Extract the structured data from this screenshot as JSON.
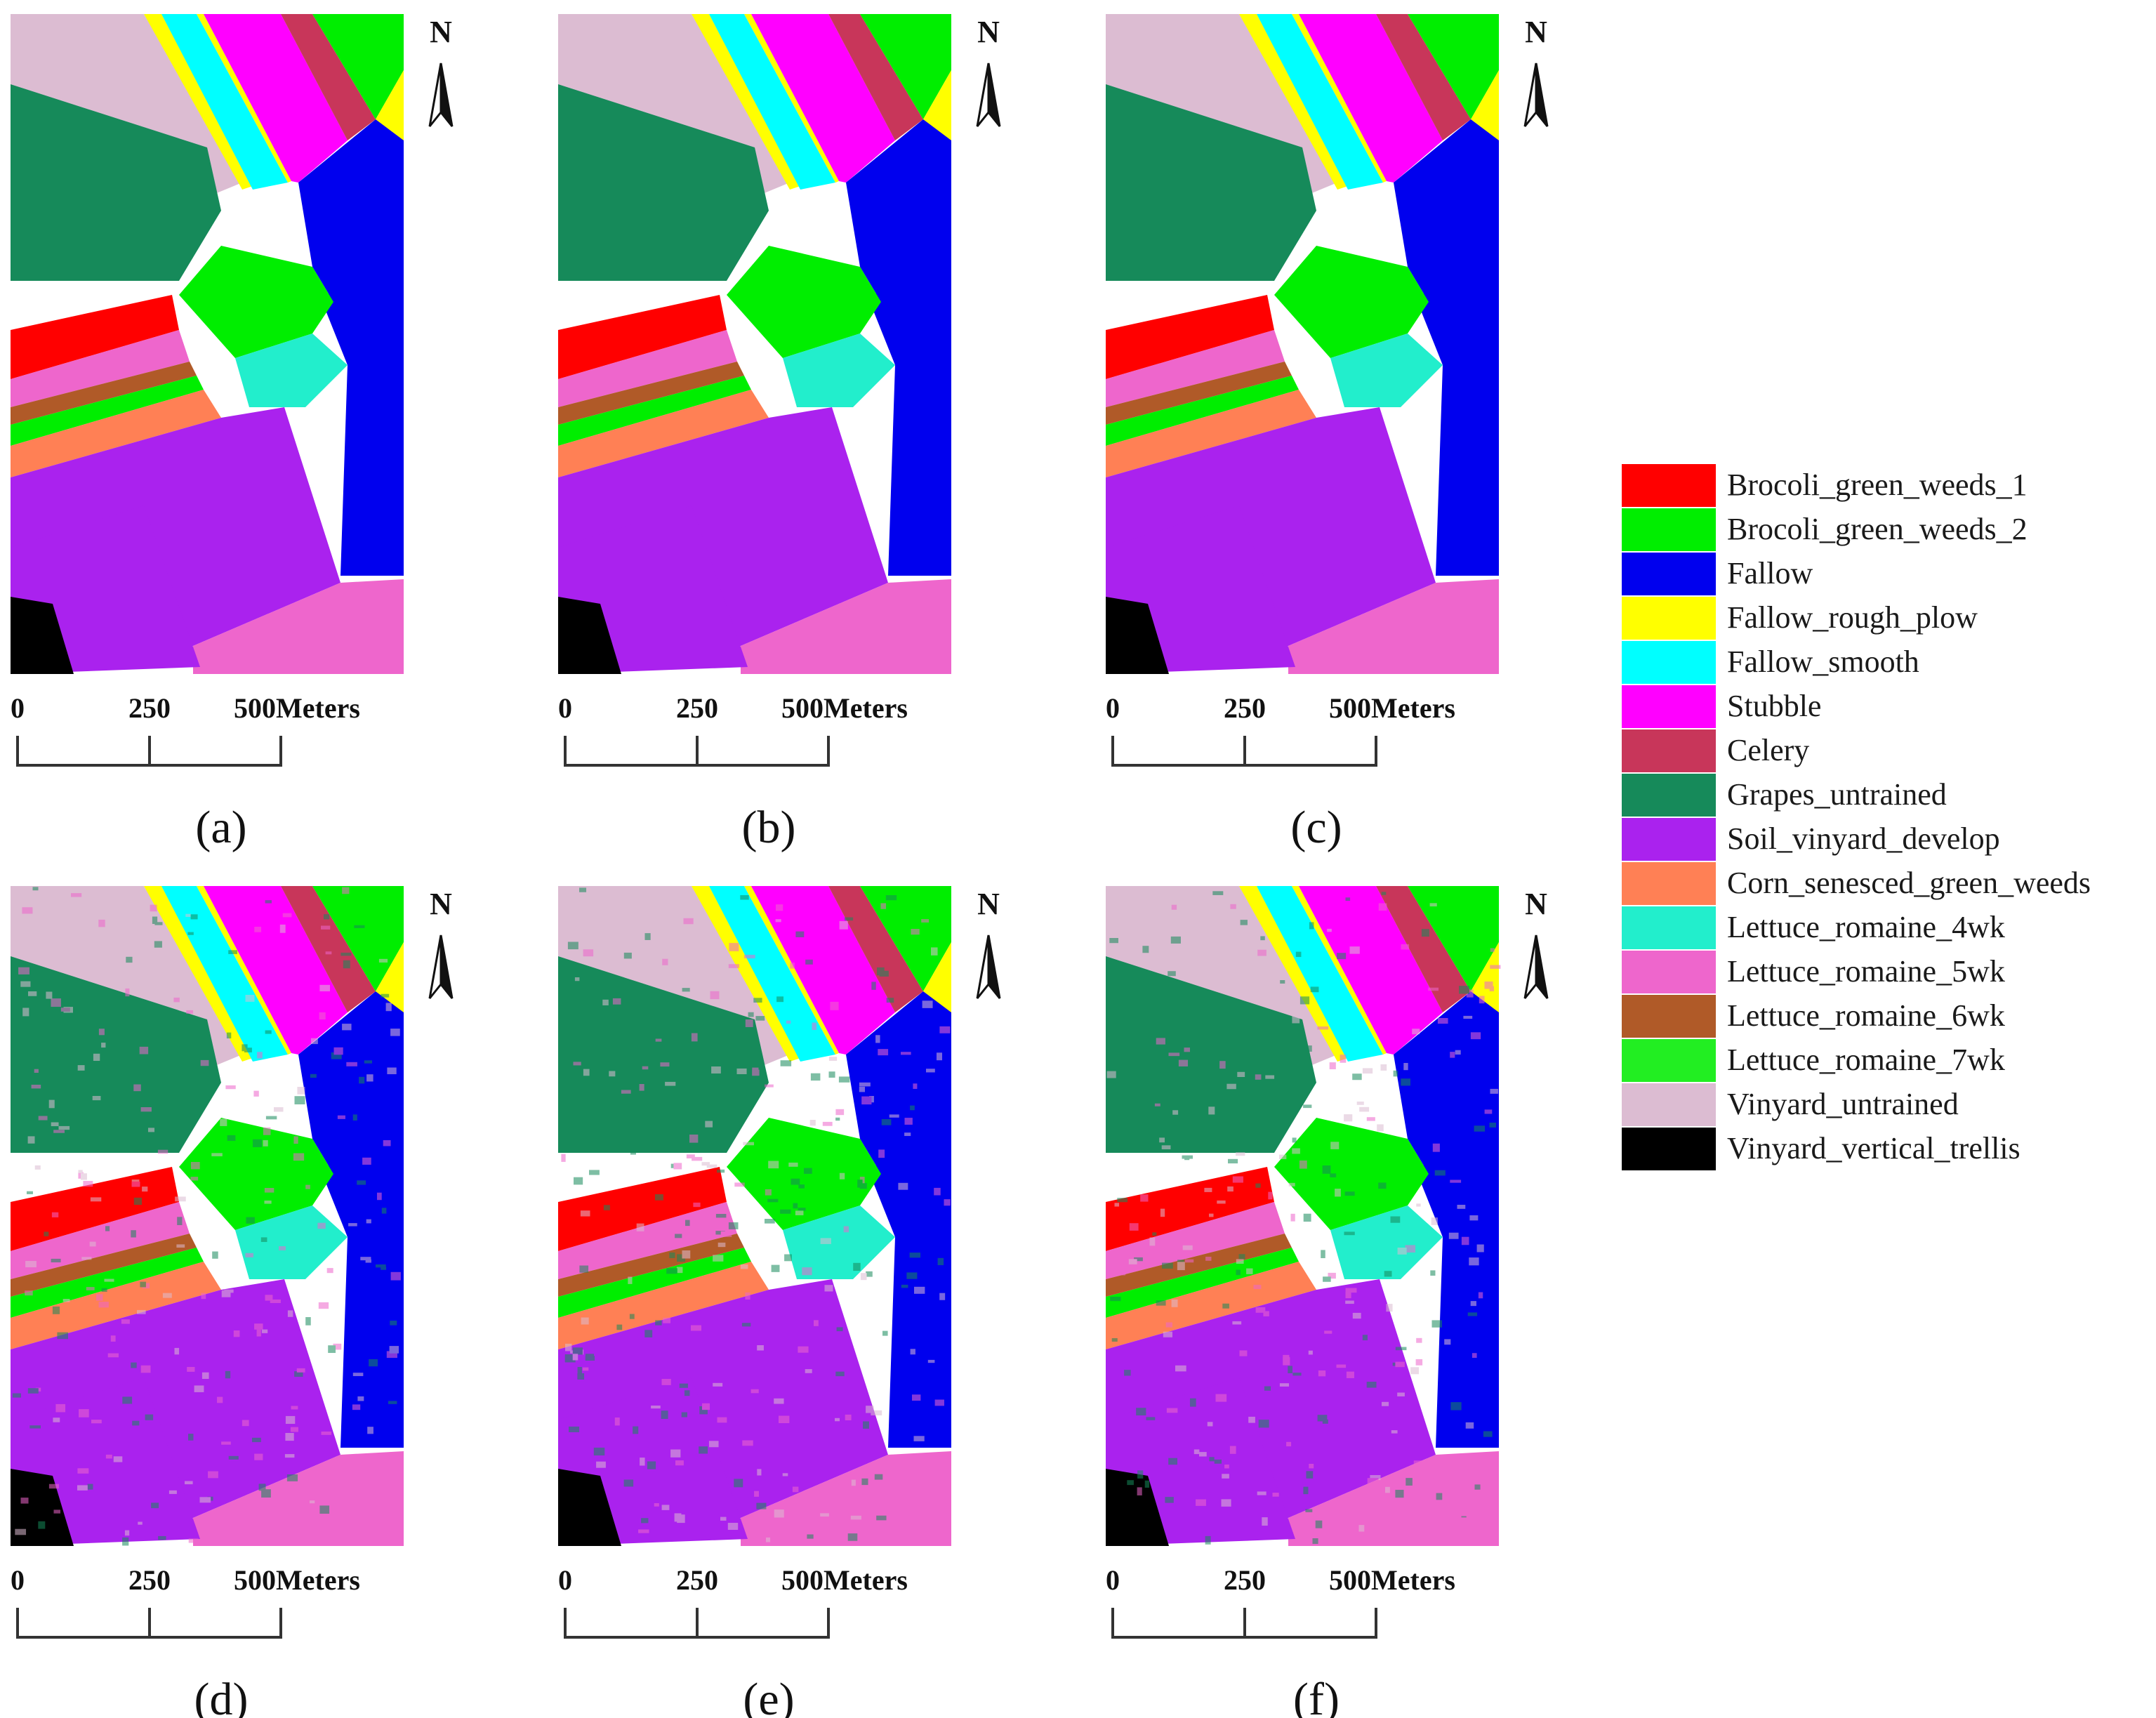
{
  "figure": {
    "panels": [
      {
        "label": "(a)"
      },
      {
        "label": "(b)"
      },
      {
        "label": "(c)"
      },
      {
        "label": "(d)"
      },
      {
        "label": "(e)"
      },
      {
        "label": "(f)"
      }
    ],
    "north_label": "N",
    "scale_bar": {
      "tick_labels": [
        "0",
        "250",
        "500Meters"
      ]
    }
  },
  "legend": {
    "items": [
      {
        "label": "Brocoli_green_weeds_1",
        "color": "#ff0000"
      },
      {
        "label": "Brocoli_green_weeds_2",
        "color": "#00ee00"
      },
      {
        "label": "Fallow",
        "color": "#0000ee"
      },
      {
        "label": "Fallow_rough_plow",
        "color": "#ffff00"
      },
      {
        "label": "Fallow_smooth",
        "color": "#00ffff"
      },
      {
        "label": "Stubble",
        "color": "#ff00ff"
      },
      {
        "label": "Celery",
        "color": "#c8365a"
      },
      {
        "label": "Grapes_untrained",
        "color": "#168a5a"
      },
      {
        "label": "Soil_vinyard_develop",
        "color": "#aa22ee"
      },
      {
        "label": "Corn_senesced_green_weeds",
        "color": "#ff8055"
      },
      {
        "label": "Lettuce_romaine_4wk",
        "color": "#22eecc"
      },
      {
        "label": "Lettuce_romaine_5wk",
        "color": "#ee66cc"
      },
      {
        "label": "Lettuce_romaine_6wk",
        "color": "#b05a28"
      },
      {
        "label": "Lettuce_romaine_7wk",
        "color": "#22ee22"
      },
      {
        "label": "Vinyard_untrained",
        "color": "#dcbcd2"
      },
      {
        "label": "Vinyard_vertical_trellis",
        "color": "#000000"
      }
    ]
  }
}
